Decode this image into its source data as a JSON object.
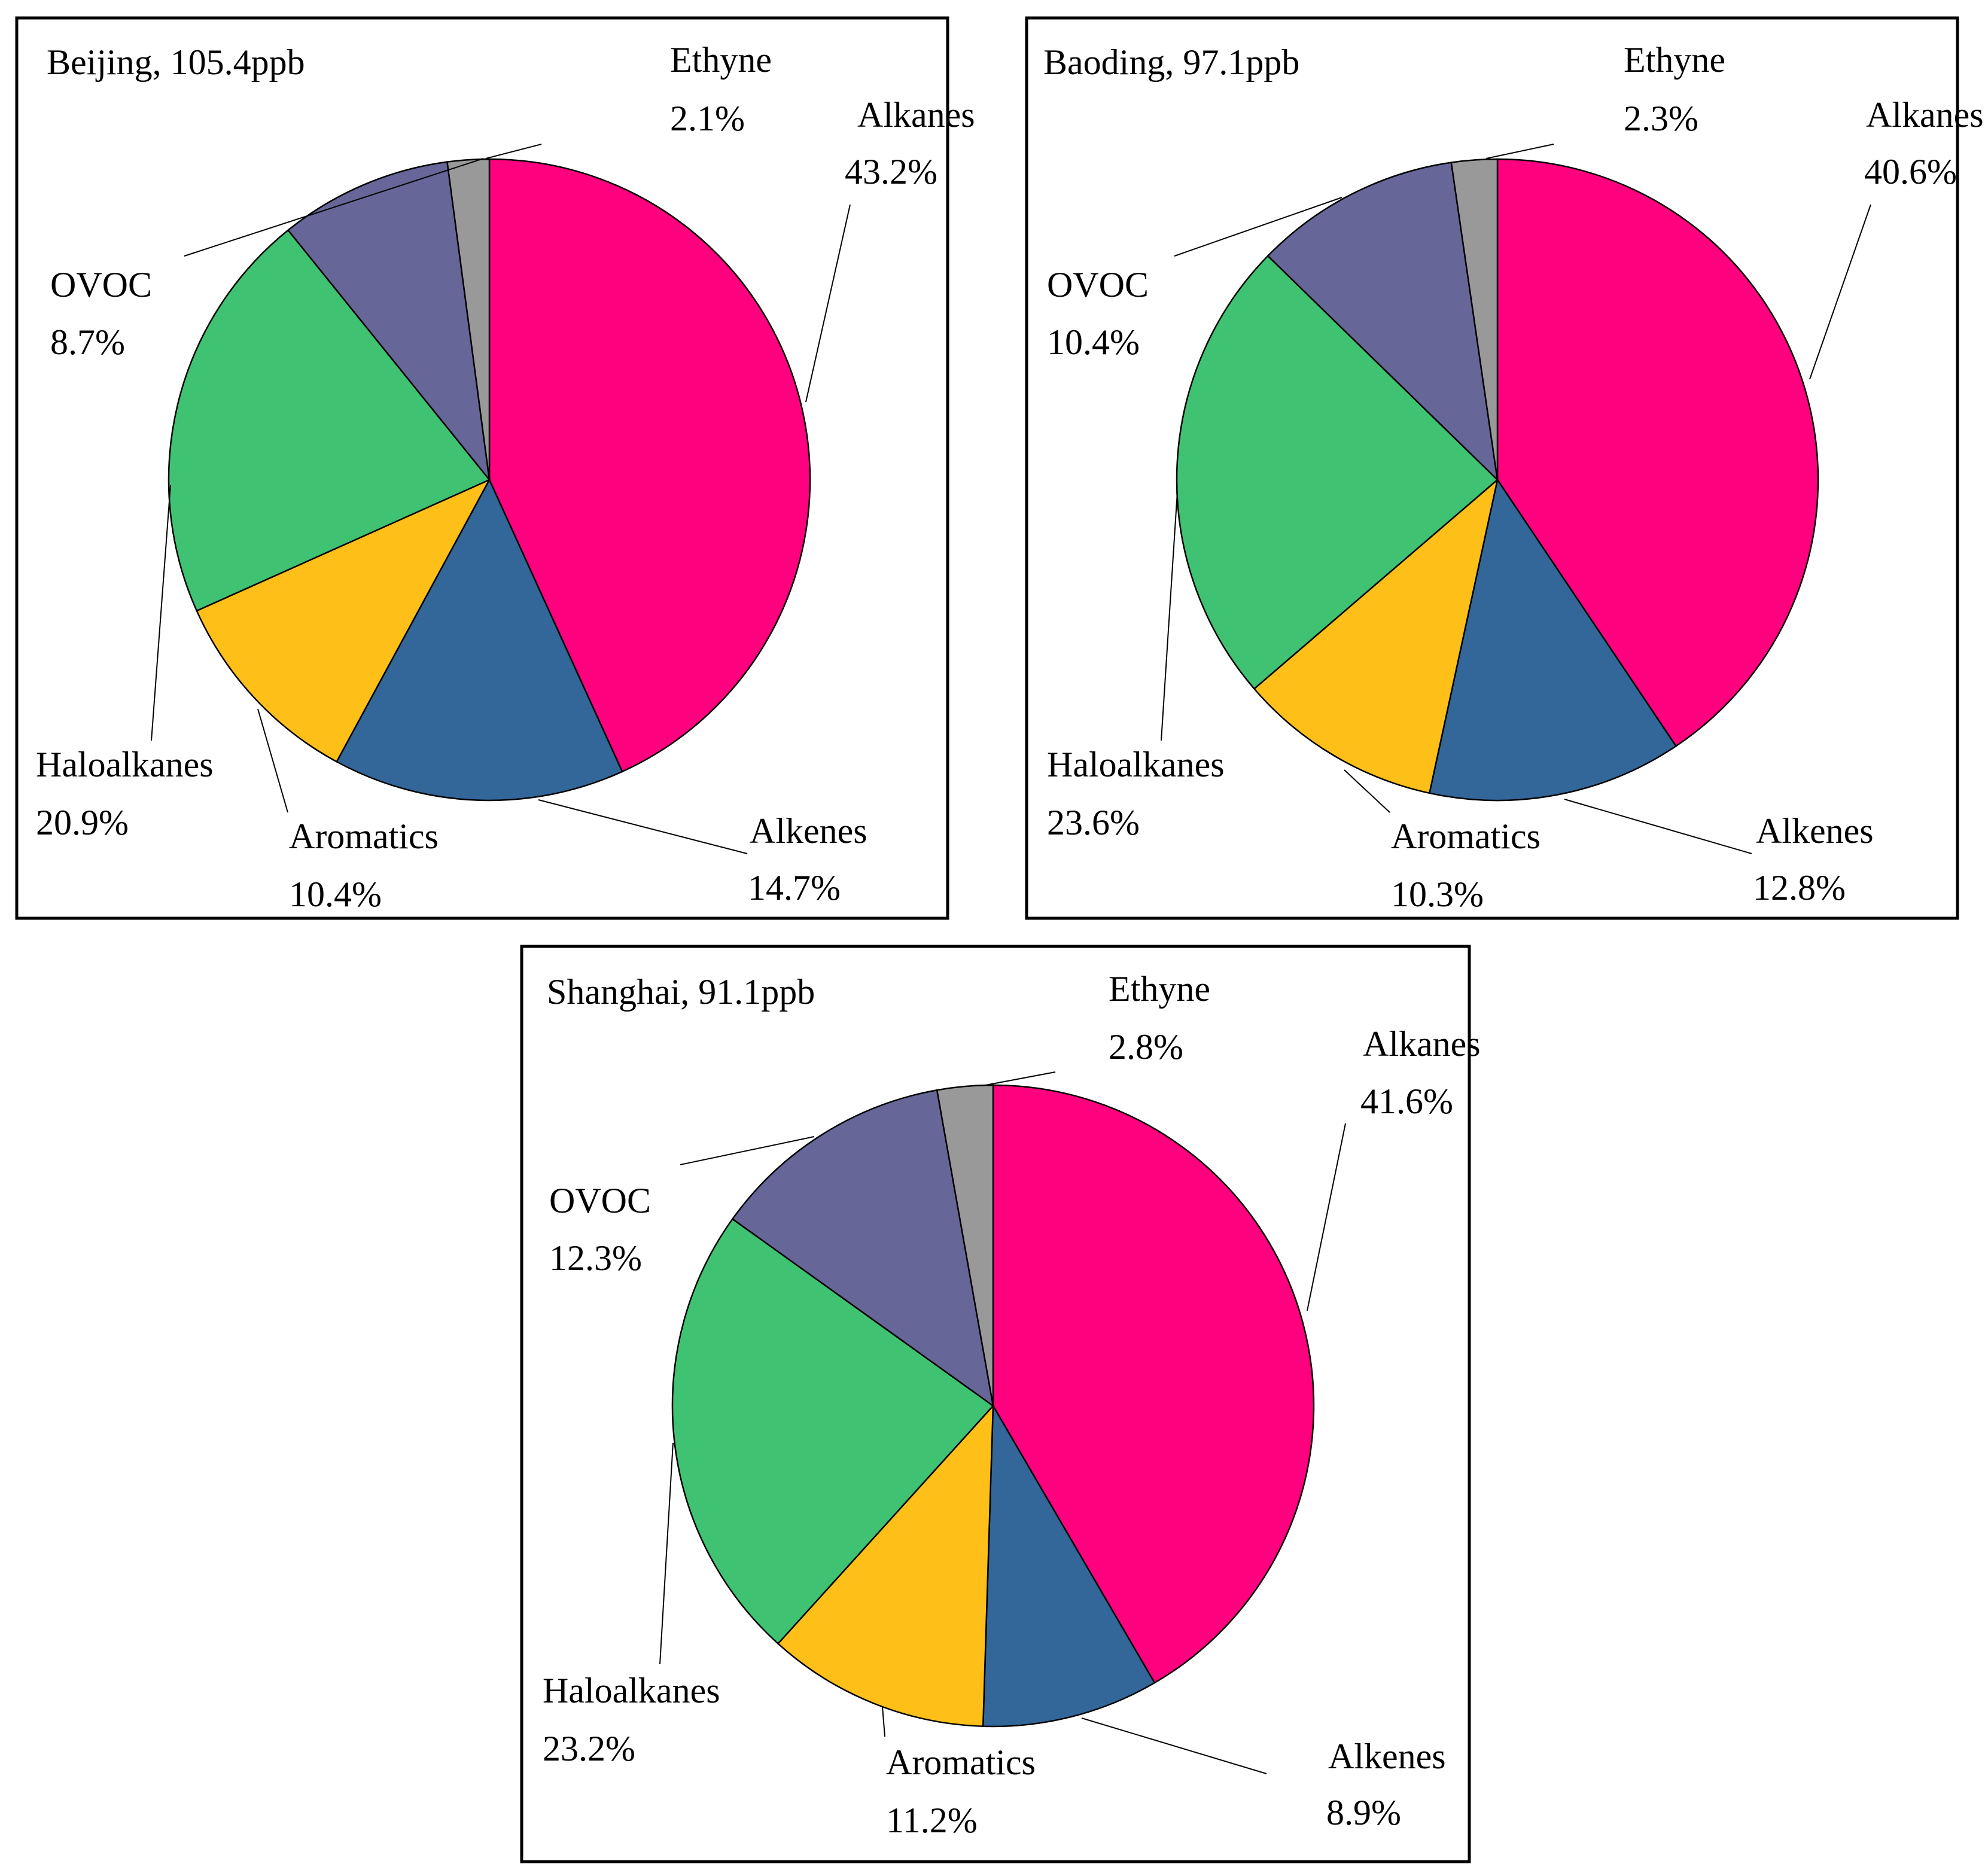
{
  "colors": {
    "Alkanes": "#ff007f",
    "Alkenes": "#336699",
    "Aromatics": "#fdbf18",
    "Haloalkanes": "#3fc373",
    "OVOC": "#666699",
    "Ethyne": "#999999"
  },
  "chart_data": [
    {
      "type": "pie",
      "title": "Beijing, 105.4ppb",
      "categories": [
        "Alkanes",
        "Alkenes",
        "Aromatics",
        "Haloalkanes",
        "OVOC",
        "Ethyne"
      ],
      "values": [
        43.2,
        14.7,
        10.4,
        20.9,
        8.7,
        2.1
      ],
      "labels": [
        "43.2%",
        "14.7%",
        "10.4%",
        "20.9%",
        "8.7%",
        "2.1%"
      ],
      "start": "12 o'clock, clockwise"
    },
    {
      "type": "pie",
      "title": "Baoding, 97.1ppb",
      "categories": [
        "Alkanes",
        "Alkenes",
        "Aromatics",
        "Haloalkanes",
        "OVOC",
        "Ethyne"
      ],
      "values": [
        40.6,
        12.8,
        10.3,
        23.6,
        10.4,
        2.3
      ],
      "labels": [
        "40.6%",
        "12.8%",
        "10.3%",
        "23.6%",
        "10.4%",
        "2.3%"
      ],
      "start": "12 o'clock, clockwise"
    },
    {
      "type": "pie",
      "title": "Shanghai, 91.1ppb",
      "categories": [
        "Alkanes",
        "Alkenes",
        "Aromatics",
        "Haloalkanes",
        "OVOC",
        "Ethyne"
      ],
      "values": [
        41.6,
        8.9,
        11.2,
        23.2,
        12.3,
        2.8
      ],
      "labels": [
        "41.6%",
        "8.9%",
        "11.2%",
        "23.2%",
        "12.3%",
        "2.8%"
      ],
      "start": "12 o'clock, clockwise"
    }
  ]
}
